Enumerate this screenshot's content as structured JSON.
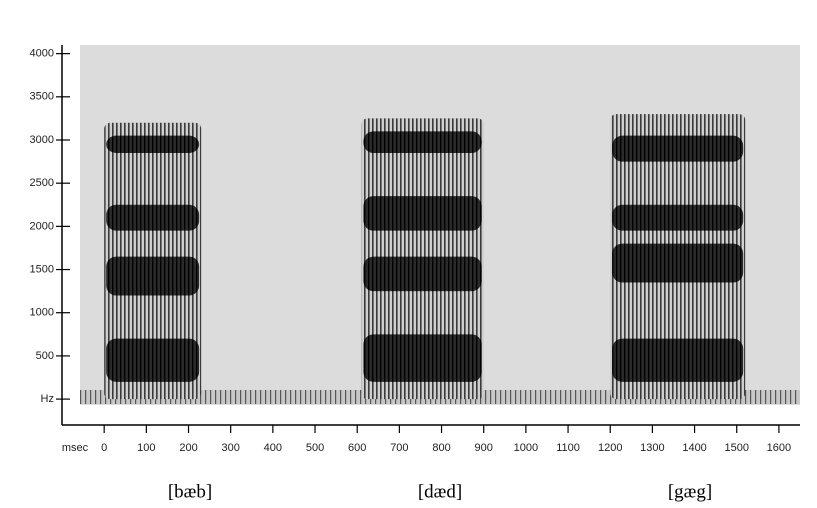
{
  "chart_data": {
    "type": "spectrogram",
    "x_label": "msec",
    "xlim": [
      -100,
      1650
    ],
    "xticks": [
      0,
      100,
      200,
      300,
      400,
      500,
      600,
      700,
      800,
      900,
      1000,
      1100,
      1200,
      1300,
      1400,
      1500,
      1600
    ],
    "ylim": [
      -300,
      4100
    ],
    "yticks": [
      {
        "value": 0,
        "label": "Hz"
      },
      500,
      1000,
      1500,
      2000,
      2500,
      3000,
      3500,
      4000
    ],
    "segments": [
      {
        "label": "[bæb]",
        "start": 0,
        "end": 230,
        "top": 3200,
        "bands": [
          [
            200,
            700
          ],
          [
            1200,
            1650
          ],
          [
            1950,
            2250
          ],
          [
            2850,
            3050
          ]
        ]
      },
      {
        "label": "[dæd]",
        "start": 610,
        "end": 900,
        "top": 3250,
        "bands": [
          [
            200,
            750
          ],
          [
            1250,
            1650
          ],
          [
            1950,
            2350
          ],
          [
            2850,
            3100
          ]
        ]
      },
      {
        "label": "[gæg]",
        "start": 1200,
        "end": 1520,
        "top": 3300,
        "bands": [
          [
            200,
            700
          ],
          [
            1350,
            1800
          ],
          [
            1950,
            2250
          ],
          [
            2750,
            3050
          ]
        ]
      }
    ]
  }
}
